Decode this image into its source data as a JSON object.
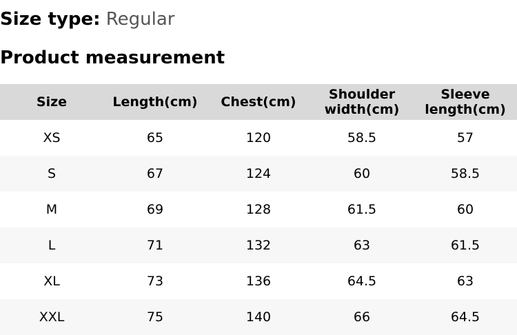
{
  "size_type": {
    "label": "Size type:",
    "value": "Regular"
  },
  "heading": "Product measurement",
  "table": {
    "headers": [
      "Size",
      "Length(cm)",
      "Chest(cm)",
      "Shoulder width(cm)",
      "Sleeve length(cm)"
    ],
    "rows": [
      [
        "XS",
        "65",
        "120",
        "58.5",
        "57"
      ],
      [
        "S",
        "67",
        "124",
        "60",
        "58.5"
      ],
      [
        "M",
        "69",
        "128",
        "61.5",
        "60"
      ],
      [
        "L",
        "71",
        "132",
        "63",
        "61.5"
      ],
      [
        "XL",
        "73",
        "136",
        "64.5",
        "63"
      ],
      [
        "XXL",
        "75",
        "140",
        "66",
        "64.5"
      ]
    ]
  }
}
